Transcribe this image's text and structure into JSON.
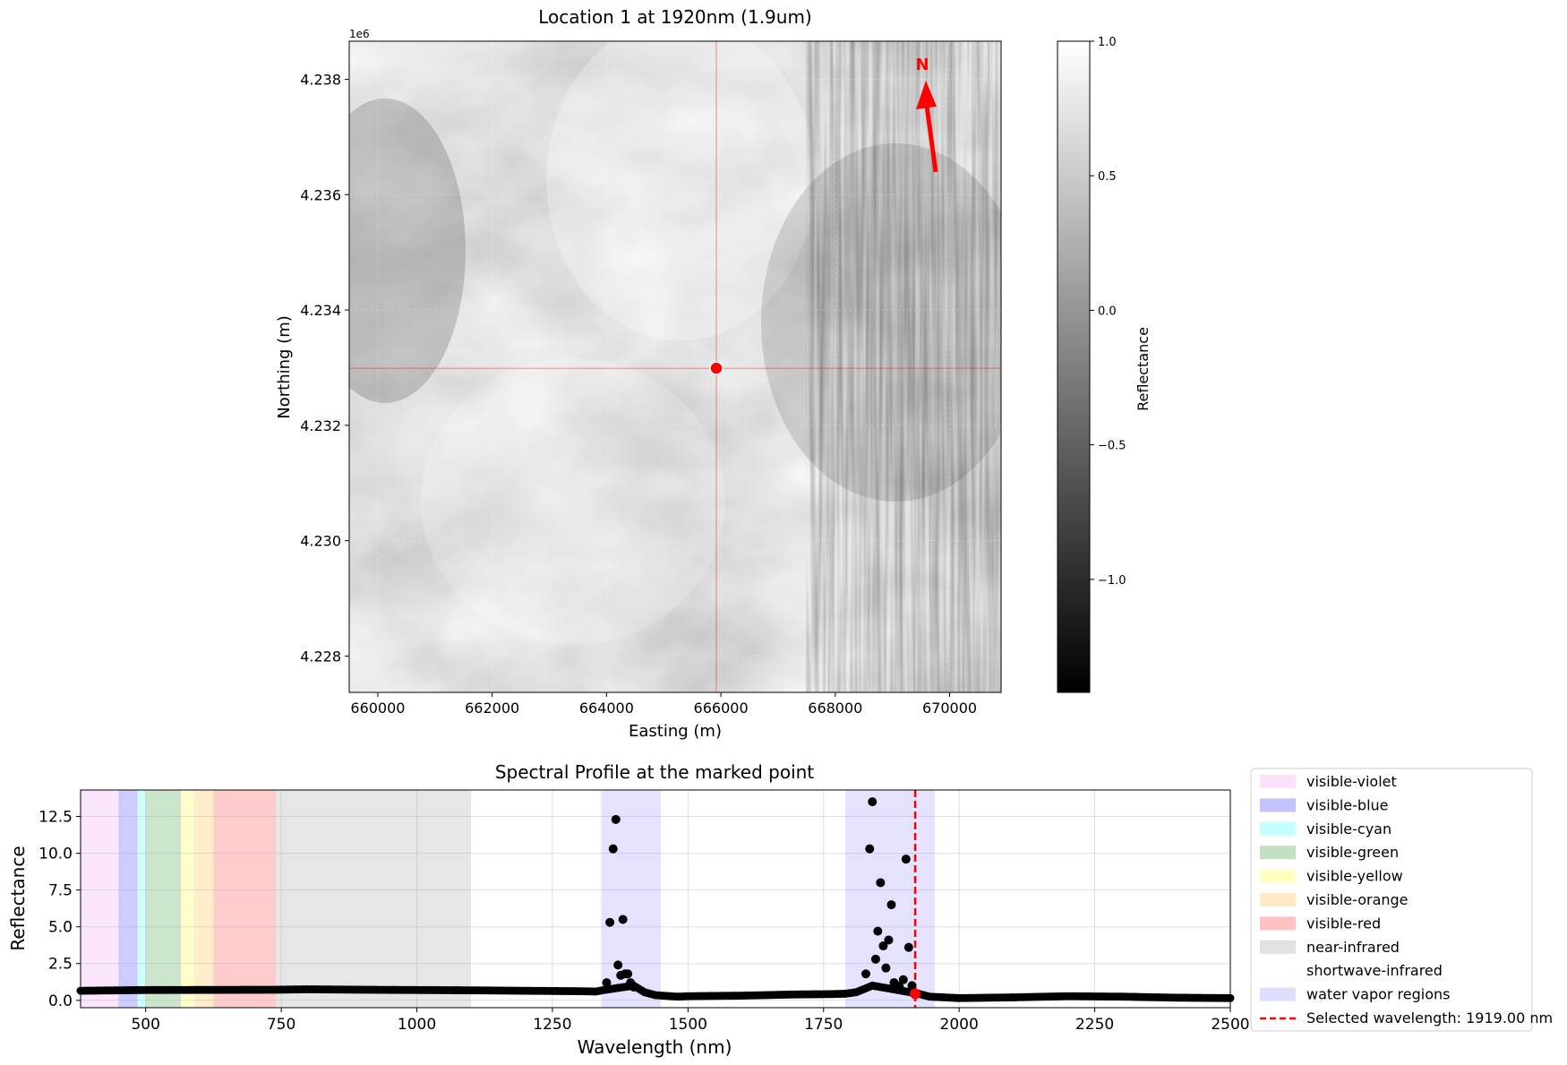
{
  "chart_data": [
    {
      "type": "heatmap",
      "title": "Location 1 at 1920nm (1.9um)",
      "xlabel": "Easting (m)",
      "ylabel": "Northing (m)",
      "y_offset_label": "1e6",
      "xlim": [
        659500,
        670900
      ],
      "ylim": [
        4.22737,
        4.23866
      ],
      "x_ticks": [
        660000,
        662000,
        664000,
        666000,
        668000,
        670000
      ],
      "x_tick_labels": [
        "660000",
        "662000",
        "664000",
        "666000",
        "668000",
        "670000"
      ],
      "y_ticks": [
        4.228,
        4.23,
        4.232,
        4.234,
        4.236,
        4.238
      ],
      "y_tick_labels": [
        "4.228",
        "4.230",
        "4.232",
        "4.234",
        "4.236",
        "4.238"
      ],
      "marked_point": {
        "x": 665920,
        "y": 4.23299
      },
      "north_arrow": {
        "label": "N",
        "color": "#ff0000"
      },
      "marker_color": "#ff0000",
      "colormap": "gray",
      "colorbar": {
        "label": "Reflectance",
        "range": [
          -1.42,
          1.0
        ],
        "ticks": [
          1.0,
          0.5,
          0.0,
          -0.5,
          -1.0
        ],
        "tick_labels": [
          "1.0",
          "0.5",
          "0.0",
          "−0.5",
          "−1.0"
        ]
      },
      "grid": true
    },
    {
      "type": "scatter",
      "title": "Spectral Profile at the marked point",
      "xlabel": "Wavelength (nm)",
      "ylabel": "Reflectance",
      "xlim": [
        380,
        2500
      ],
      "ylim": [
        -0.5,
        14.3
      ],
      "x_ticks": [
        500,
        750,
        1000,
        1250,
        1500,
        1750,
        2000,
        2250,
        2500
      ],
      "x_tick_labels": [
        "500",
        "750",
        "1000",
        "1250",
        "1500",
        "1750",
        "2000",
        "2250",
        "2500"
      ],
      "y_ticks": [
        0.0,
        2.5,
        5.0,
        7.5,
        10.0,
        12.5
      ],
      "y_tick_labels": [
        "0.0",
        "2.5",
        "5.0",
        "7.5",
        "10.0",
        "12.5"
      ],
      "grid": true,
      "bands": [
        {
          "name": "visible-violet",
          "range": [
            380,
            450
          ],
          "color": "#ee82ee",
          "alpha": 0.2
        },
        {
          "name": "visible-blue",
          "range": [
            450,
            485
          ],
          "color": "#0000ff",
          "alpha": 0.2
        },
        {
          "name": "visible-cyan",
          "range": [
            485,
            500
          ],
          "color": "#00ffff",
          "alpha": 0.2
        },
        {
          "name": "visible-green",
          "range": [
            500,
            565
          ],
          "color": "#008000",
          "alpha": 0.2
        },
        {
          "name": "visible-yellow",
          "range": [
            565,
            590
          ],
          "color": "#ffff00",
          "alpha": 0.2
        },
        {
          "name": "visible-orange",
          "range": [
            590,
            625
          ],
          "color": "#ffa500",
          "alpha": 0.2
        },
        {
          "name": "visible-red",
          "range": [
            625,
            740
          ],
          "color": "#ff0000",
          "alpha": 0.2
        },
        {
          "name": "near-infrared",
          "range": [
            740,
            1100
          ],
          "color": "#808080",
          "alpha": 0.2
        },
        {
          "name": "shortwave-infrared",
          "range": [
            1100,
            2500
          ],
          "color": "#ffffff",
          "alpha": 0.0
        },
        {
          "name": "water vapor regions",
          "ranges": [
            [
              1340,
              1450
            ],
            [
              1790,
              1955
            ]
          ],
          "color": "#6666ff",
          "alpha": 0.18
        }
      ],
      "selected_wavelength": {
        "value": 1919.0,
        "label": "Selected wavelength: 1919.00 nm",
        "color": "#ff0000"
      },
      "selected_point": {
        "x": 1919,
        "y": 0.45
      },
      "baseline": [
        [
          380,
          0.65
        ],
        [
          500,
          0.7
        ],
        [
          740,
          0.72
        ],
        [
          800,
          0.75
        ],
        [
          900,
          0.72
        ],
        [
          1000,
          0.7
        ],
        [
          1100,
          0.68
        ],
        [
          1200,
          0.65
        ],
        [
          1300,
          0.62
        ],
        [
          1330,
          0.6
        ],
        [
          1345,
          0.7
        ],
        [
          1400,
          1.0
        ],
        [
          1420,
          0.55
        ],
        [
          1440,
          0.35
        ],
        [
          1480,
          0.25
        ],
        [
          1500,
          0.28
        ],
        [
          1600,
          0.32
        ],
        [
          1700,
          0.4
        ],
        [
          1760,
          0.42
        ],
        [
          1790,
          0.45
        ],
        [
          1810,
          0.55
        ],
        [
          1840,
          1.0
        ],
        [
          1925,
          0.45
        ],
        [
          1945,
          0.25
        ],
        [
          2000,
          0.15
        ],
        [
          2100,
          0.2
        ],
        [
          2200,
          0.28
        ],
        [
          2300,
          0.25
        ],
        [
          2400,
          0.18
        ],
        [
          2500,
          0.15
        ]
      ],
      "baseline_step_nm": 5,
      "outliers": [
        {
          "x": 1350,
          "y": 1.2
        },
        {
          "x": 1356,
          "y": 5.3
        },
        {
          "x": 1362,
          "y": 10.3
        },
        {
          "x": 1367,
          "y": 12.3
        },
        {
          "x": 1371,
          "y": 2.4
        },
        {
          "x": 1376,
          "y": 1.7
        },
        {
          "x": 1380,
          "y": 5.5
        },
        {
          "x": 1384,
          "y": 1.8
        },
        {
          "x": 1389,
          "y": 1.8
        },
        {
          "x": 1394,
          "y": 1.2
        },
        {
          "x": 1400,
          "y": 0.9
        },
        {
          "x": 1828,
          "y": 1.8
        },
        {
          "x": 1835,
          "y": 10.3
        },
        {
          "x": 1840,
          "y": 13.5
        },
        {
          "x": 1846,
          "y": 2.8
        },
        {
          "x": 1850,
          "y": 4.7
        },
        {
          "x": 1855,
          "y": 8.0
        },
        {
          "x": 1860,
          "y": 3.7
        },
        {
          "x": 1865,
          "y": 2.2
        },
        {
          "x": 1870,
          "y": 4.1
        },
        {
          "x": 1875,
          "y": 6.5
        },
        {
          "x": 1880,
          "y": 1.2
        },
        {
          "x": 1885,
          "y": 1.0
        },
        {
          "x": 1890,
          "y": 0.9
        },
        {
          "x": 1897,
          "y": 1.4
        },
        {
          "x": 1902,
          "y": 9.6
        },
        {
          "x": 1907,
          "y": 3.6
        },
        {
          "x": 1913,
          "y": 1.0
        }
      ],
      "point_color": "#000000"
    }
  ]
}
